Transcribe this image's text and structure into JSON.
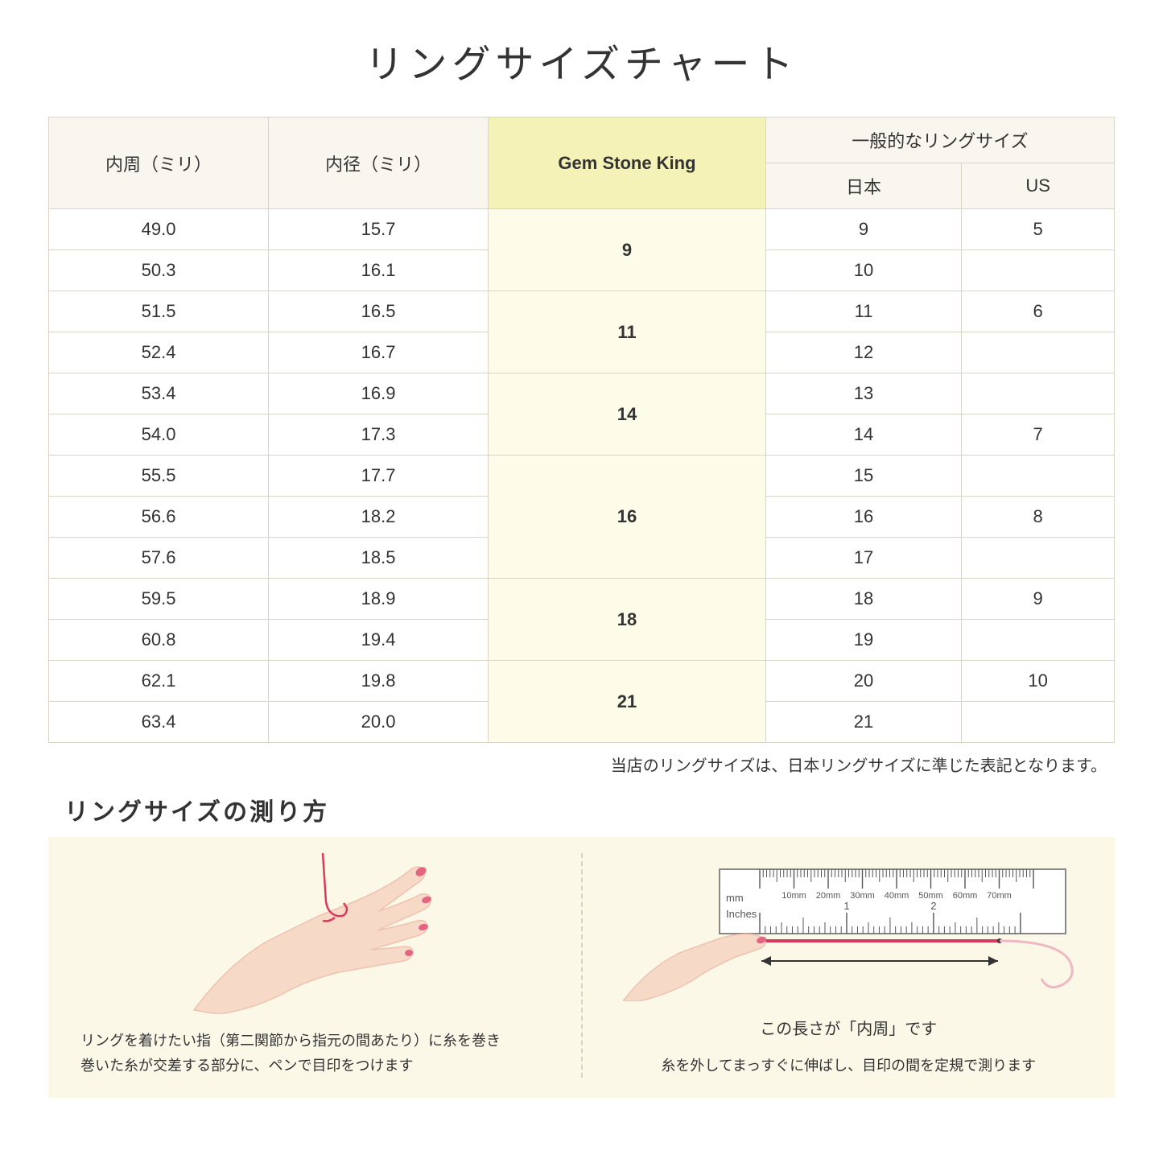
{
  "title": "リングサイズチャート",
  "table": {
    "headers": {
      "col1": "内周（ミリ）",
      "col2": "内径（ミリ）",
      "col3": "Gem Stone King",
      "col4_top": "一般的なリングサイズ",
      "col4_jp": "日本",
      "col4_us": "US"
    },
    "groups": [
      {
        "gsk": "9",
        "rows": [
          {
            "c": "49.0",
            "d": "15.7",
            "jp": "9",
            "us": "5"
          },
          {
            "c": "50.3",
            "d": "16.1",
            "jp": "10",
            "us": ""
          }
        ]
      },
      {
        "gsk": "11",
        "rows": [
          {
            "c": "51.5",
            "d": "16.5",
            "jp": "11",
            "us": "6"
          },
          {
            "c": "52.4",
            "d": "16.7",
            "jp": "12",
            "us": ""
          }
        ]
      },
      {
        "gsk": "14",
        "rows": [
          {
            "c": "53.4",
            "d": "16.9",
            "jp": "13",
            "us": ""
          },
          {
            "c": "54.0",
            "d": "17.3",
            "jp": "14",
            "us": "7"
          }
        ]
      },
      {
        "gsk": "16",
        "rows": [
          {
            "c": "55.5",
            "d": "17.7",
            "jp": "15",
            "us": ""
          },
          {
            "c": "56.6",
            "d": "18.2",
            "jp": "16",
            "us": "8"
          },
          {
            "c": "57.6",
            "d": "18.5",
            "jp": "17",
            "us": ""
          }
        ]
      },
      {
        "gsk": "18",
        "rows": [
          {
            "c": "59.5",
            "d": "18.9",
            "jp": "18",
            "us": "9"
          },
          {
            "c": "60.8",
            "d": "19.4",
            "jp": "19",
            "us": ""
          }
        ]
      },
      {
        "gsk": "21",
        "rows": [
          {
            "c": "62.1",
            "d": "19.8",
            "jp": "20",
            "us": "10"
          },
          {
            "c": "63.4",
            "d": "20.0",
            "jp": "21",
            "us": ""
          }
        ]
      }
    ],
    "colors": {
      "header_bg": "#f8f6ee",
      "highlight_header_bg": "#f5f2b8",
      "highlight_cell_bg": "#fdfce8",
      "border": "#d8d4c8"
    }
  },
  "note": "当店のリングサイズは、日本リングサイズに準じた表記となります。",
  "howto": {
    "title": "リングサイズの測り方",
    "left_text": "リングを着けたい指（第二関節から指元の間あたり）に糸を巻き\n巻いた糸が交差する部分に、ペンで目印をつけます",
    "right_label": "この長さが「内周」です",
    "right_text": "糸を外してまっすぐに伸ばし、目印の間を定規で測ります",
    "ruler": {
      "mm_label": "mm",
      "inches_label": "Inches",
      "mm_marks": [
        "10mm",
        "20mm",
        "30mm",
        "40mm",
        "50mm",
        "60mm",
        "70mm"
      ],
      "inch_marks": [
        "1",
        "2"
      ]
    },
    "colors": {
      "panel_bg": "#fbf8e8",
      "skin": "#f7d9c8",
      "skin_shadow": "#eec2ad",
      "nail": "#e4657f",
      "thread": "#d83a5e",
      "ruler_border": "#888",
      "arrow": "#333"
    }
  }
}
